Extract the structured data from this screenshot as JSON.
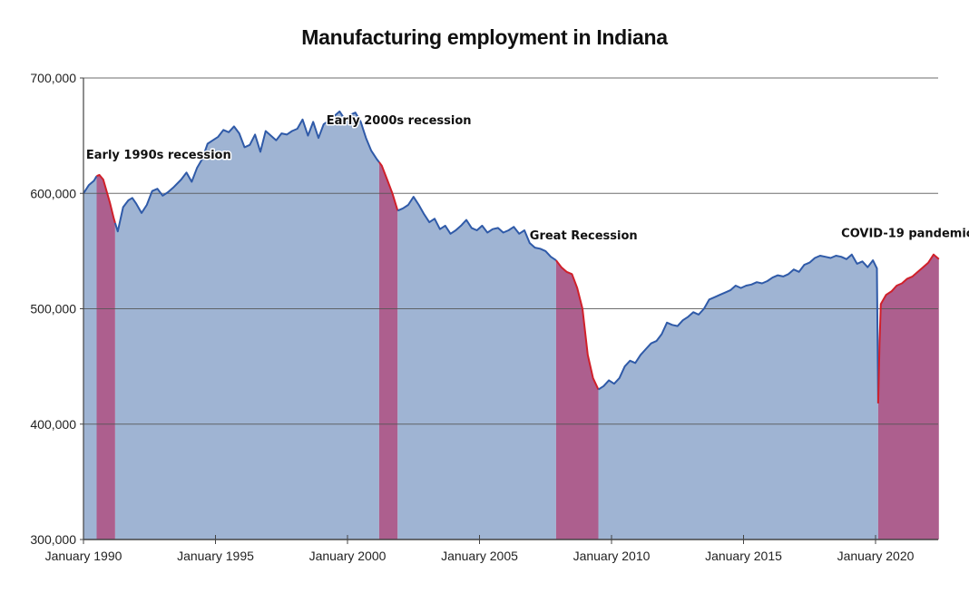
{
  "chart_data": {
    "type": "area",
    "title": "Manufacturing employment in Indiana",
    "xlabel": "",
    "ylabel": "",
    "xlim": [
      1990.0,
      2022.4
    ],
    "ylim": [
      300000,
      700000
    ],
    "grid": true,
    "y_ticks": [
      {
        "value": 300000,
        "label": "300,000"
      },
      {
        "value": 400000,
        "label": "400,000"
      },
      {
        "value": 500000,
        "label": "500,000"
      },
      {
        "value": 600000,
        "label": "600,000"
      },
      {
        "value": 700000,
        "label": "700,000"
      }
    ],
    "x_ticks": [
      {
        "value": 1990,
        "label": "January 1990"
      },
      {
        "value": 1995,
        "label": "January 1995"
      },
      {
        "value": 2000,
        "label": "January 2000"
      },
      {
        "value": 2005,
        "label": "January 2005"
      },
      {
        "value": 2010,
        "label": "January 2010"
      },
      {
        "value": 2015,
        "label": "January 2015"
      },
      {
        "value": 2020,
        "label": "January 2020"
      }
    ],
    "colors": {
      "line_normal": "#2f5aa8",
      "line_recession": "#d0202a",
      "fill_normal": "#9fb4d3",
      "fill_recession": "#ad5f8e",
      "grid": "#555555",
      "axis": "#444444"
    },
    "recessions": [
      {
        "name": "Early 1990s recession",
        "start": 1990.5,
        "end": 1991.2
      },
      {
        "name": "Early 2000s recession",
        "start": 2001.2,
        "end": 2001.9
      },
      {
        "name": "Great Recession",
        "start": 2007.9,
        "end": 2009.5
      },
      {
        "name": "COVID-19 pandemic",
        "start": 2020.1,
        "end": 2022.4
      }
    ],
    "annotations": [
      {
        "text": "Early 1990s recession",
        "x": 1990.1,
        "y": 630000
      },
      {
        "text": "Early 2000s recession",
        "x": 1999.2,
        "y": 660000
      },
      {
        "text": "Great Recession",
        "x": 2006.9,
        "y": 560000
      },
      {
        "text": "COVID-19 pandemic",
        "x": 2018.7,
        "y": 562000
      }
    ],
    "series": [
      {
        "name": "Manufacturing employment",
        "x": [
          1990.0,
          1990.2,
          1990.4,
          1990.5,
          1990.6,
          1990.75,
          1990.9,
          1991.0,
          1991.15,
          1991.3,
          1991.5,
          1991.7,
          1991.85,
          1992.0,
          1992.2,
          1992.4,
          1992.6,
          1992.8,
          1993.0,
          1993.2,
          1993.4,
          1993.7,
          1993.9,
          1994.1,
          1994.3,
          1994.5,
          1994.7,
          1994.9,
          1995.1,
          1995.3,
          1995.5,
          1995.7,
          1995.9,
          1996.1,
          1996.3,
          1996.5,
          1996.7,
          1996.9,
          1997.1,
          1997.3,
          1997.5,
          1997.7,
          1997.9,
          1998.1,
          1998.3,
          1998.5,
          1998.7,
          1998.9,
          1999.1,
          1999.3,
          1999.5,
          1999.7,
          1999.9,
          2000.1,
          2000.3,
          2000.5,
          2000.7,
          2000.9,
          2001.1,
          2001.3,
          2001.5,
          2001.7,
          2001.9,
          2002.1,
          2002.3,
          2002.5,
          2002.7,
          2002.9,
          2003.1,
          2003.3,
          2003.5,
          2003.7,
          2003.9,
          2004.1,
          2004.3,
          2004.5,
          2004.7,
          2004.9,
          2005.1,
          2005.3,
          2005.5,
          2005.7,
          2005.9,
          2006.1,
          2006.3,
          2006.5,
          2006.7,
          2006.9,
          2007.1,
          2007.3,
          2007.5,
          2007.7,
          2007.9,
          2008.1,
          2008.3,
          2008.5,
          2008.7,
          2008.9,
          2009.1,
          2009.3,
          2009.5,
          2009.7,
          2009.9,
          2010.1,
          2010.3,
          2010.5,
          2010.7,
          2010.9,
          2011.1,
          2011.3,
          2011.5,
          2011.7,
          2011.9,
          2012.1,
          2012.3,
          2012.5,
          2012.7,
          2012.9,
          2013.1,
          2013.3,
          2013.5,
          2013.7,
          2013.9,
          2014.1,
          2014.3,
          2014.5,
          2014.7,
          2014.9,
          2015.1,
          2015.3,
          2015.5,
          2015.7,
          2015.9,
          2016.1,
          2016.3,
          2016.5,
          2016.7,
          2016.9,
          2017.1,
          2017.3,
          2017.5,
          2017.7,
          2017.9,
          2018.1,
          2018.3,
          2018.5,
          2018.7,
          2018.9,
          2019.1,
          2019.3,
          2019.5,
          2019.7,
          2019.9,
          2020.05,
          2020.1,
          2020.15,
          2020.2,
          2020.3,
          2020.4,
          2020.6,
          2020.8,
          2021.0,
          2021.2,
          2021.4,
          2021.6,
          2021.8,
          2022.0,
          2022.2,
          2022.4
        ],
        "values": [
          600000,
          607000,
          611000,
          615000,
          616000,
          612000,
          600000,
          592000,
          578000,
          567000,
          588000,
          594000,
          596000,
          591000,
          583000,
          590000,
          602000,
          604000,
          598000,
          601000,
          605000,
          612000,
          618000,
          610000,
          622000,
          630000,
          643000,
          646000,
          649000,
          655000,
          653000,
          658000,
          652000,
          640000,
          642000,
          651000,
          636000,
          654000,
          650000,
          646000,
          652000,
          651000,
          654000,
          656000,
          664000,
          650000,
          662000,
          648000,
          660000,
          663000,
          667000,
          671000,
          664000,
          668000,
          670000,
          662000,
          648000,
          637000,
          630000,
          624000,
          612000,
          600000,
          585000,
          587000,
          590000,
          597000,
          590000,
          582000,
          575000,
          578000,
          569000,
          572000,
          565000,
          568000,
          572000,
          577000,
          570000,
          568000,
          572000,
          566000,
          569000,
          570000,
          566000,
          568000,
          571000,
          565000,
          568000,
          557000,
          553000,
          552000,
          550000,
          545000,
          542000,
          536000,
          532000,
          530000,
          518000,
          500000,
          460000,
          440000,
          430000,
          433000,
          438000,
          435000,
          440000,
          450000,
          455000,
          453000,
          460000,
          465000,
          470000,
          472000,
          478000,
          488000,
          486000,
          485000,
          490000,
          493000,
          497000,
          495000,
          500000,
          508000,
          510000,
          512000,
          514000,
          516000,
          520000,
          518000,
          520000,
          521000,
          523000,
          522000,
          524000,
          527000,
          529000,
          528000,
          530000,
          534000,
          532000,
          538000,
          540000,
          544000,
          546000,
          545000,
          544000,
          546000,
          545000,
          543000,
          547000,
          539000,
          541000,
          536000,
          542000,
          535000,
          418000,
          470000,
          504000,
          508000,
          512000,
          515000,
          520000,
          522000,
          526000,
          528000,
          532000,
          536000,
          540000,
          547000,
          543000
        ]
      }
    ]
  }
}
